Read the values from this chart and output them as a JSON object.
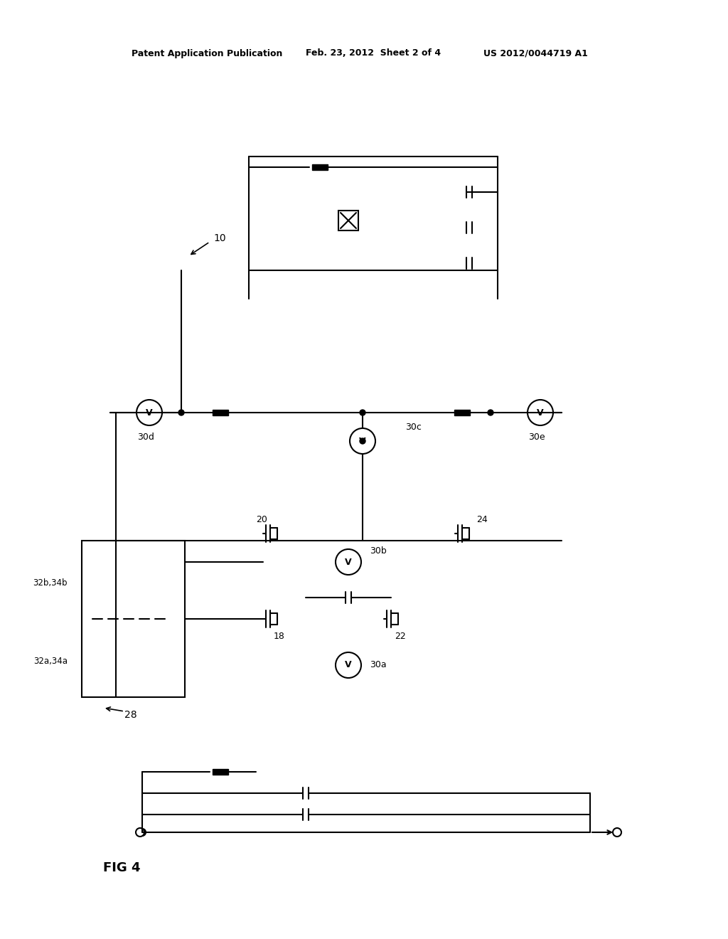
{
  "title": "FIG 4",
  "header_left": "Patent Application Publication",
  "header_mid": "Feb. 23, 2012  Sheet 2 of 4",
  "header_right": "US 2012/0044719 A1",
  "bg_color": "#ffffff",
  "line_color": "#000000",
  "label_10": "10",
  "label_28": "28",
  "label_18": "18",
  "label_20": "20",
  "label_22": "22",
  "label_24": "24",
  "label_30a": "30a",
  "label_30b": "30b",
  "label_30c": "30c",
  "label_30d": "30d",
  "label_30e": "30e",
  "label_32a34a": "32a,34a",
  "label_32b34b": "32b,34b"
}
